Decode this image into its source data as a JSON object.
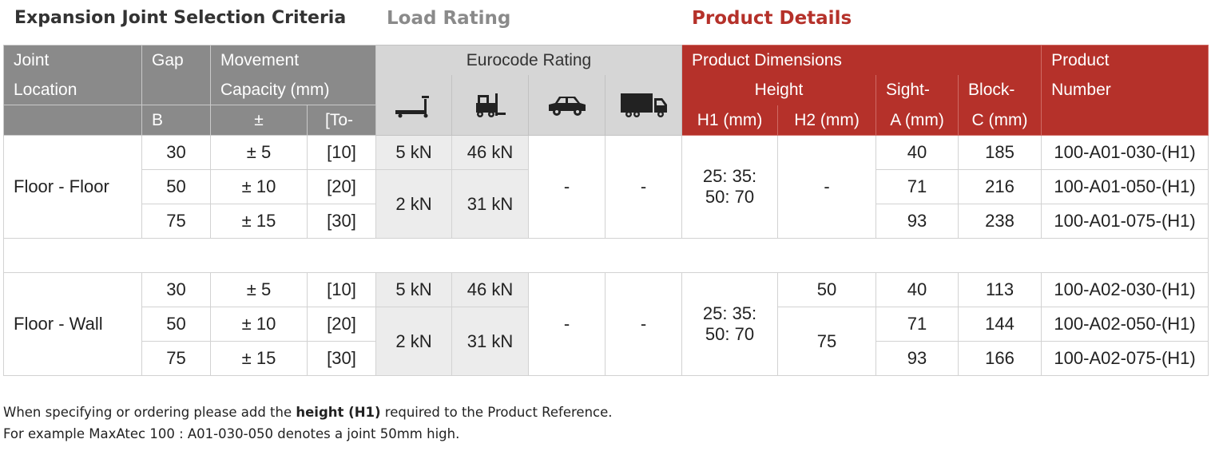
{
  "titles": {
    "selection": "Expansion Joint Selection Criteria",
    "load": "Load Rating",
    "product": "Product Details"
  },
  "header": {
    "joint_location_1": "Joint",
    "joint_location_2": "Location",
    "gap": "Gap",
    "gap_sub": "B",
    "movement_1": "Movement",
    "movement_2": "Capacity (mm)",
    "movement_pm": "±",
    "movement_to": "[To-",
    "eurocode": "Eurocode Rating",
    "prod_dim": "Product Dimensions",
    "height": "Height",
    "h1": "H1 (mm)",
    "h2": "H2 (mm)",
    "sight_1": "Sight-",
    "sight_2": "A (mm)",
    "block_1": "Block-",
    "block_2": "C (mm)",
    "pn_1": "Product",
    "pn_2": "Number",
    "icons": [
      "pallet-truck-icon",
      "forklift-icon",
      "car-icon",
      "truck-icon"
    ]
  },
  "groups": [
    {
      "location": "Floor - Floor",
      "rows": [
        {
          "gap": "30",
          "pm": "± 5",
          "to": "[10]",
          "sight": "40",
          "block": "185",
          "pn": "100-A01-030-(H1)"
        },
        {
          "gap": "50",
          "pm": "± 10",
          "to": "[20]",
          "sight": "71",
          "block": "216",
          "pn": "100-A01-050-(H1)"
        },
        {
          "gap": "75",
          "pm": "± 15",
          "to": "[30]",
          "sight": "93",
          "block": "238",
          "pn": "100-A01-075-(H1)"
        }
      ],
      "load_row1_a": "5 kN",
      "load_row1_b": "46 kN",
      "load_row23_a": "2 kN",
      "load_row23_b": "31 kN",
      "car": "-",
      "truck": "-",
      "h1_line1": "25: 35:",
      "h1_line2": "50: 70",
      "h2": "-"
    },
    {
      "location": "Floor - Wall",
      "rows": [
        {
          "gap": "30",
          "pm": "± 5",
          "to": "[10]",
          "sight": "40",
          "block": "113",
          "pn": "100-A02-030-(H1)"
        },
        {
          "gap": "50",
          "pm": "± 10",
          "to": "[20]",
          "sight": "71",
          "block": "144",
          "pn": "100-A02-050-(H1)"
        },
        {
          "gap": "75",
          "pm": "± 15",
          "to": "[30]",
          "sight": "93",
          "block": "166",
          "pn": "100-A02-075-(H1)"
        }
      ],
      "load_row1_a": "5 kN",
      "load_row1_b": "46 kN",
      "load_row23_a": "2 kN",
      "load_row23_b": "31 kN",
      "car": "-",
      "truck": "-",
      "h1_line1": "25: 35:",
      "h1_line2": "50: 70",
      "h2_row1": "50",
      "h2_row23": "75"
    }
  ],
  "notes": {
    "line1_pre": "When specifying or ordering please add the ",
    "line1_bold": "height (H1)",
    "line1_post": " required to the Product Reference.",
    "line2": "For example MaxAtec 100 : A01-030-050 denotes a joint 50mm high."
  },
  "colors": {
    "grey_header": "#8a8a8a",
    "light_header": "#d6d6d6",
    "red_header": "#b5312a",
    "load_cell": "#ececec"
  }
}
